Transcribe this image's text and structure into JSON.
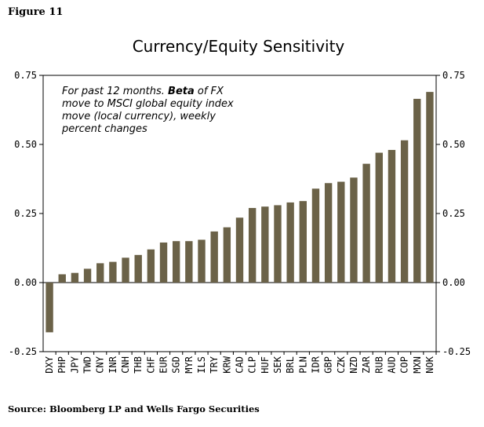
{
  "figure_label": "Figure 11",
  "source": "Source: Bloomberg LP and Wells Fargo Securities",
  "chart_data": {
    "type": "bar",
    "title": "Currency/Equity Sensitivity",
    "xlabel": "",
    "ylabel": "",
    "ylim": [
      -0.25,
      0.75
    ],
    "yticks": [
      "0.75",
      "0.50",
      "0.25",
      "0.00",
      "-0.25"
    ],
    "ytick_values": [
      0.75,
      0.5,
      0.25,
      0.0,
      -0.25
    ],
    "grid": false,
    "bar_color": "#6b6248",
    "annotation": {
      "line1_pre": "For past 12 months. ",
      "line1_bold": "Beta",
      "line1_post": " of FX",
      "line2": "move to MSCI global equity index",
      "line3": "move (local currency), weekly",
      "line4": "percent changes"
    },
    "categories": [
      "DXY",
      "PHP",
      "JPY",
      "TWD",
      "CNY",
      "INR",
      "CNH",
      "THB",
      "CHF",
      "EUR",
      "SGD",
      "MYR",
      "ILS",
      "TRY",
      "KRW",
      "CAD",
      "CLP",
      "HUF",
      "SEK",
      "BRL",
      "PLN",
      "IDR",
      "GBP",
      "CZK",
      "NZD",
      "ZAR",
      "RUB",
      "AUD",
      "COP",
      "MXN",
      "NOK"
    ],
    "values": [
      -0.18,
      0.03,
      0.035,
      0.05,
      0.07,
      0.075,
      0.09,
      0.1,
      0.12,
      0.145,
      0.15,
      0.15,
      0.155,
      0.185,
      0.2,
      0.235,
      0.27,
      0.275,
      0.28,
      0.29,
      0.295,
      0.34,
      0.36,
      0.365,
      0.38,
      0.43,
      0.47,
      0.48,
      0.515,
      0.665,
      0.69
    ]
  }
}
